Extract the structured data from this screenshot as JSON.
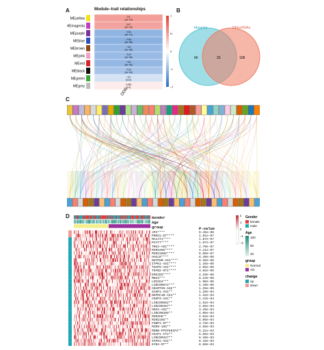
{
  "panel_a": {
    "letter": "A",
    "title": "Module−trait relationships",
    "trait_label": "DDR",
    "modules": [
      {
        "name": "MEyellow",
        "swatch": "#f2e21c",
        "cell": "0.5\n(1e−19)",
        "r": 0.5
      },
      {
        "name": "MEmagenta",
        "swatch": "#c43fc0",
        "cell": "0.47\n(2e−16)",
        "r": 0.47
      },
      {
        "name": "MEpurple",
        "swatch": "#7b2fa0",
        "cell": "−0.51\n(3e−10)",
        "r": -0.51
      },
      {
        "name": "MEblue",
        "swatch": "#2f4fbf",
        "cell": "−0.54\n(3e−08)",
        "r": -0.54
      },
      {
        "name": "MEbrown",
        "swatch": "#8a4b1f",
        "cell": "−0.5\n(1e−08)",
        "r": -0.5
      },
      {
        "name": "MEpink",
        "swatch": "#f2a2c4",
        "cell": "−0.47\n(1e−08)",
        "r": -0.47
      },
      {
        "name": "MEred",
        "swatch": "#d6262d",
        "cell": "−0.5\n(4e−08)",
        "r": -0.5
      },
      {
        "name": "MEblack",
        "swatch": "#111111",
        "cell": "−0.41\n(1e−04)",
        "r": -0.41
      },
      {
        "name": "MEgreen",
        "swatch": "#41a83c",
        "cell": "−0.2\n(0.02)",
        "r": -0.2
      },
      {
        "name": "MEgrey",
        "swatch": "#bdbdbd",
        "cell": "0.098\n(0.2)",
        "r": 0.098
      }
    ],
    "scale_ticks": [
      "1",
      "0.5",
      "0",
      "−0.5",
      "−1"
    ]
  },
  "panel_b": {
    "letter": "B",
    "left_label": "Magenta",
    "right_label": "DElncRNAs",
    "left_only": "66",
    "overlap": "33",
    "right_only": "108",
    "left_color": "#52c3d4",
    "right_color": "#ef7a60"
  },
  "panel_c": {
    "letter": "C"
  },
  "panel_d": {
    "letter": "D",
    "annotation_rows": [
      "Gender",
      "Age",
      "group"
    ],
    "pvalue_header": "P-value",
    "genes": [
      {
        "name": "JPX****",
        "p": "9.45e-08"
      },
      {
        "name": "PRKG1-DT****",
        "p": "1.01e-07"
      },
      {
        "name": "MALAT1****",
        "p": "1.87e-07"
      },
      {
        "name": "PCAT7****",
        "p": "1.97e-07"
      },
      {
        "name": "TRG3-AS1****",
        "p": "2.70e-07"
      },
      {
        "name": "MIR22HG****",
        "p": "4.11e-07"
      },
      {
        "name": "MIR210HG****",
        "p": "6.50e-07"
      },
      {
        "name": "HAGLR****",
        "p": "8.40e-06"
      },
      {
        "name": "NUTM2B-AS1****",
        "p": "8.36e-06"
      },
      {
        "name": "ITPK1-AS1****",
        "p": "1.48e-06"
      },
      {
        "name": "THAP9-AS1****",
        "p": "2.95e-06"
      },
      {
        "name": "TGFB2-OT1****",
        "p": "3.82e-06"
      },
      {
        "name": "EMX2OS****",
        "p": "4.29e-06"
      },
      {
        "name": "MEG3***",
        "p": "8.23e-06"
      },
      {
        "name": "LOC554***",
        "p": "1.96e-05"
      },
      {
        "name": "LINC00672***",
        "p": "1.49e-05"
      },
      {
        "name": "ADAMTS9-AS2**",
        "p": "1.25e-05"
      },
      {
        "name": "SASP1-AS1**",
        "p": "1.20e-04"
      },
      {
        "name": "DEPDC1B-AS1**",
        "p": "1.32e-04"
      },
      {
        "name": "ASSP3-AS1**",
        "p": "1.44e-04"
      },
      {
        "name": "LINC00662**",
        "p": "1.52e-04"
      },
      {
        "name": "LINC00467**",
        "p": "2.55e-04"
      },
      {
        "name": "HOXA-AS2**",
        "p": "3.45e-04"
      },
      {
        "name": "LINC00485**",
        "p": "4.06e-04"
      },
      {
        "name": "MIR2HG**",
        "p": "4.62e-04"
      },
      {
        "name": "MIR21HG**",
        "p": "5.06e-04"
      },
      {
        "name": "FGBP1-DT**",
        "p": "3.78e-03"
      },
      {
        "name": "MIR9-1HG**",
        "p": "4.55e-03"
      },
      {
        "name": "RORB-PPIP5K1P4**",
        "p": "5.21e-03"
      },
      {
        "name": "ASAP1-IT2**",
        "p": "5.85e-03"
      },
      {
        "name": "LINC00327**",
        "p": "6.48e-03"
      },
      {
        "name": "SAP61-AS1**",
        "p": "8.16e-03"
      },
      {
        "name": "KYN3-DT**",
        "p": "8.60e-03"
      }
    ],
    "legend": {
      "gender_title": "Gender",
      "gender_items": [
        {
          "label": "female",
          "color": "#e23b3b"
        },
        {
          "label": "male",
          "color": "#1ea7b3"
        }
      ],
      "age_title": "Age",
      "age_ticks": [
        "100",
        "60",
        "40"
      ],
      "group_title": "group",
      "group_items": [
        {
          "label": "Normal",
          "color": "#f3ef8c"
        },
        {
          "label": "AD",
          "color": "#9b2f9b"
        }
      ],
      "change_title": "change",
      "change_items": [
        {
          "label": "up",
          "color": "#1ea7b3"
        },
        {
          "label": "down",
          "color": "#f29a9a"
        }
      ],
      "heat_ticks": [
        "2",
        "1",
        "0",
        "−1",
        "−2"
      ]
    }
  }
}
